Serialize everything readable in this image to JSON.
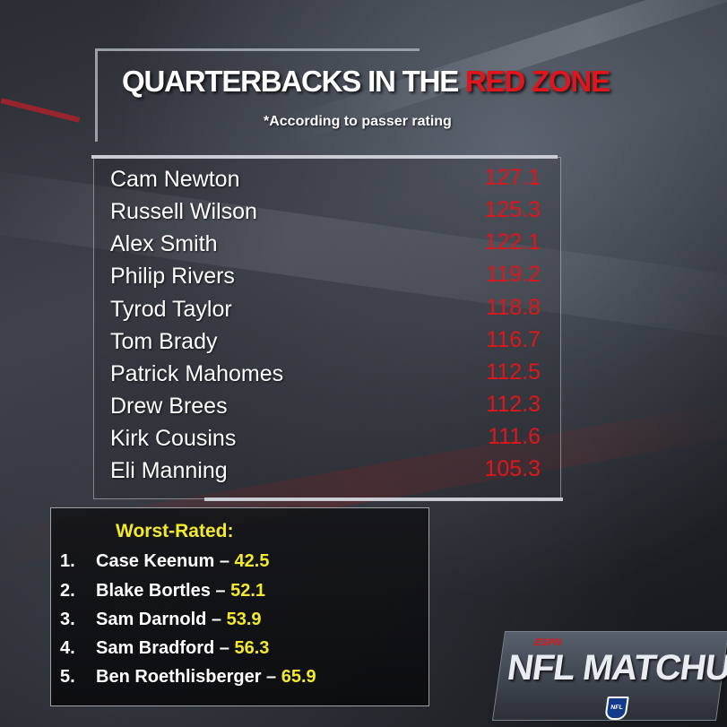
{
  "header": {
    "title_main": "QUARTERBACKS IN THE ",
    "title_highlight": "RED ZONE",
    "subtitle": "*According to passer rating"
  },
  "top_list": [
    {
      "name": "Cam Newton",
      "rating": "127.1"
    },
    {
      "name": "Russell Wilson",
      "rating": "125.3"
    },
    {
      "name": "Alex Smith",
      "rating": "122.1"
    },
    {
      "name": "Philip Rivers",
      "rating": "119.2"
    },
    {
      "name": "Tyrod Taylor",
      "rating": "118.8"
    },
    {
      "name": "Tom Brady",
      "rating": "116.7"
    },
    {
      "name": "Patrick Mahomes",
      "rating": "112.5"
    },
    {
      "name": "Drew Brees",
      "rating": "112.3"
    },
    {
      "name": "Kirk Cousins",
      "rating": "111.6"
    },
    {
      "name": "Eli Manning",
      "rating": "105.3"
    }
  ],
  "worst": {
    "title": "Worst-Rated:",
    "separator": " – ",
    "items": [
      {
        "num": "1.",
        "name": "Case Keenum",
        "rating": "42.5"
      },
      {
        "num": "2.",
        "name": "Blake Bortles",
        "rating": "52.1"
      },
      {
        "num": "3.",
        "name": "Sam Darnold",
        "rating": "53.9"
      },
      {
        "num": "4.",
        "name": "Sam Bradford",
        "rating": "56.3"
      },
      {
        "num": "5.",
        "name": "Ben Roethlisberger",
        "rating": "65.9"
      }
    ]
  },
  "logo": {
    "network": "ESPN",
    "show": "NFL MATCHUP",
    "league_badge": "NFL"
  },
  "colors": {
    "red": "#e0161c",
    "yellow": "#f3ea2a",
    "white": "#ffffff"
  }
}
